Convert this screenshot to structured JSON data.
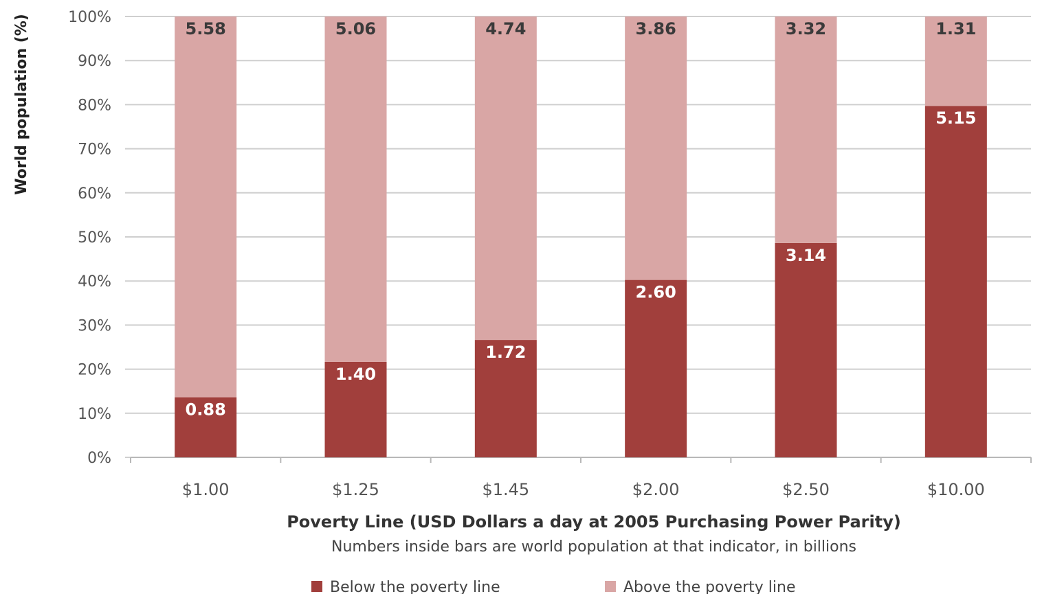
{
  "chart_data": {
    "type": "bar",
    "stacked": true,
    "percent_stacked": true,
    "categories": [
      "$1.00",
      "$1.25",
      "$1.45",
      "$2.00",
      "$2.50",
      "$10.00"
    ],
    "series": [
      {
        "name": "Below the poverty line",
        "values": [
          0.88,
          1.4,
          1.72,
          2.6,
          3.14,
          5.15
        ],
        "labels": [
          "0.88",
          "1.40",
          "1.72",
          "2.60",
          "3.14",
          "5.15"
        ],
        "color": "#a13f3c",
        "label_color": "#ffffff"
      },
      {
        "name": "Above the poverty line",
        "values": [
          5.58,
          5.06,
          4.74,
          3.86,
          3.32,
          1.31
        ],
        "labels": [
          "5.58",
          "5.06",
          "4.74",
          "3.86",
          "3.32",
          "1.31"
        ],
        "color": "#d9a6a5",
        "label_color": "#3a3a3a"
      }
    ],
    "xlabel": "Poverty Line (USD Dollars a day at 2005 Purchasing Power Parity)",
    "note": "Numbers inside bars are world population at that indicator, in billions",
    "ylabel": "World population (%)",
    "ylim": [
      0,
      100
    ],
    "yticks": [
      0,
      10,
      20,
      30,
      40,
      50,
      60,
      70,
      80,
      90,
      100
    ],
    "ytick_labels": [
      "0%",
      "10%",
      "20%",
      "30%",
      "40%",
      "50%",
      "60%",
      "70%",
      "80%",
      "90%",
      "100%"
    ],
    "grid": true,
    "gridline_color": "#cfcfcf",
    "legend_position": "bottom"
  }
}
